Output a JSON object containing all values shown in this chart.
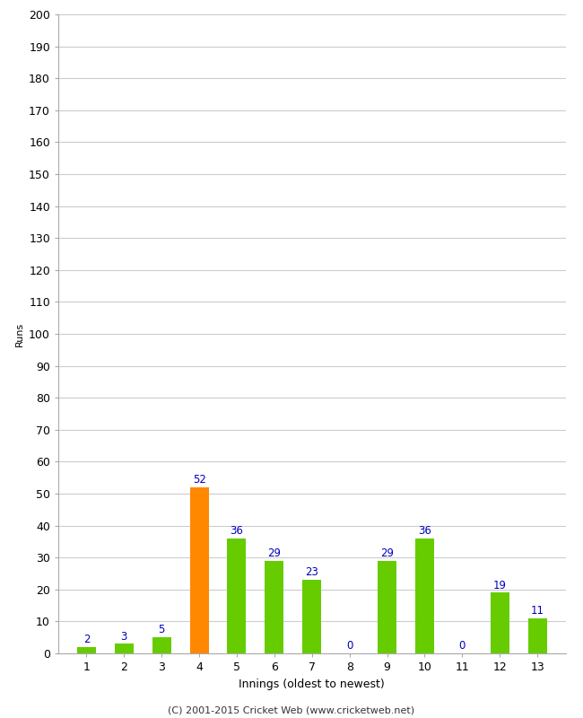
{
  "innings": [
    1,
    2,
    3,
    4,
    5,
    6,
    7,
    8,
    9,
    10,
    11,
    12,
    13
  ],
  "runs": [
    2,
    3,
    5,
    52,
    36,
    29,
    23,
    0,
    29,
    36,
    0,
    19,
    11
  ],
  "bar_colors": [
    "#66cc00",
    "#66cc00",
    "#66cc00",
    "#ff8800",
    "#66cc00",
    "#66cc00",
    "#66cc00",
    "#66cc00",
    "#66cc00",
    "#66cc00",
    "#66cc00",
    "#66cc00",
    "#66cc00"
  ],
  "label_color": "#0000bb",
  "xlabel": "Innings (oldest to newest)",
  "ylabel": "Runs",
  "ylim": [
    0,
    200
  ],
  "yticks": [
    0,
    10,
    20,
    30,
    40,
    50,
    60,
    70,
    80,
    90,
    100,
    110,
    120,
    130,
    140,
    150,
    160,
    170,
    180,
    190,
    200
  ],
  "footer": "(C) 2001-2015 Cricket Web (www.cricketweb.net)",
  "background_color": "#ffffff",
  "grid_color": "#cccccc",
  "bar_width": 0.5
}
